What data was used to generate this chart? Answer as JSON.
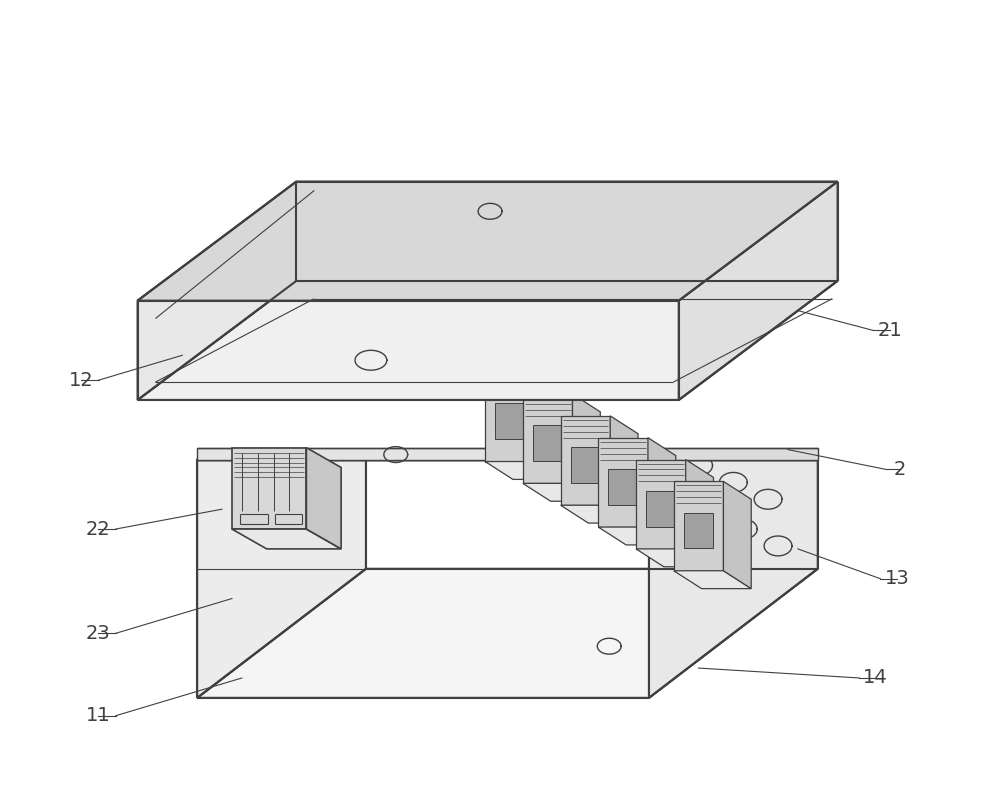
{
  "background_color": "#ffffff",
  "line_color": "#404040",
  "line_width": 1.0,
  "fig_width": 10.0,
  "fig_height": 7.89,
  "label_fontsize": 14,
  "label_color": "#404040"
}
